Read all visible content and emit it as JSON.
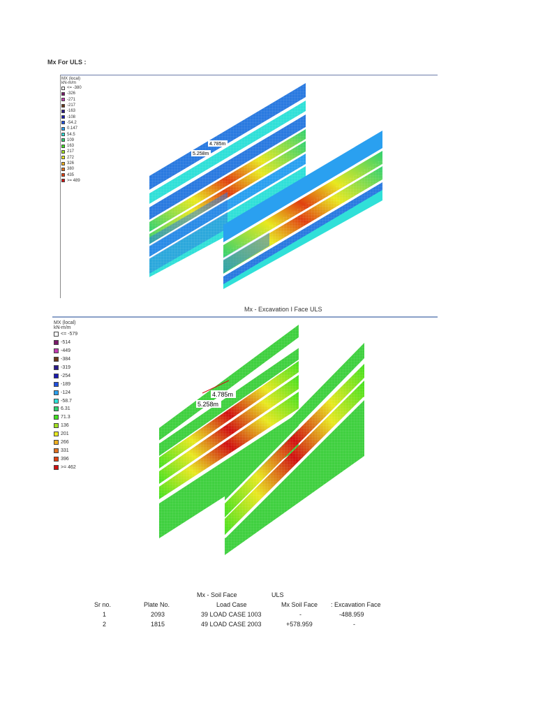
{
  "section1": {
    "heading": "Mx For ULS :",
    "legend_title": "MX (local)",
    "legend_unit": "kN-m/m",
    "legend": [
      {
        "label": "<= -380",
        "color": "#ffffff"
      },
      {
        "label": "-326",
        "color": "#7a1a6a"
      },
      {
        "label": "-271",
        "color": "#c23ab0"
      },
      {
        "label": "-217",
        "color": "#6b3a1a"
      },
      {
        "label": "-163",
        "color": "#2a1a8a"
      },
      {
        "label": "-108",
        "color": "#1a1ab0"
      },
      {
        "label": "-54.2",
        "color": "#2050e0"
      },
      {
        "label": "0.147",
        "color": "#2aa0f0"
      },
      {
        "label": "54.5",
        "color": "#30e0d8"
      },
      {
        "label": "109",
        "color": "#30d070"
      },
      {
        "label": "163",
        "color": "#40e020"
      },
      {
        "label": "217",
        "color": "#a0e020"
      },
      {
        "label": "272",
        "color": "#e8e820"
      },
      {
        "label": "326",
        "color": "#f0b020"
      },
      {
        "label": "380",
        "color": "#e07020"
      },
      {
        "label": "435",
        "color": "#e04010"
      },
      {
        "label": ">= 489",
        "color": "#d01010"
      }
    ],
    "dim_a": "4.785m",
    "dim_b": "5.258m"
  },
  "section2": {
    "heading": "Mx - Excavation I Face  ULS",
    "legend_title": "MX (local)",
    "legend_unit": "kN-m/m",
    "legend": [
      {
        "label": "<= -579",
        "color": "#ffffff"
      },
      {
        "label": "-514",
        "color": "#7a1a6a"
      },
      {
        "label": "-449",
        "color": "#c23ab0"
      },
      {
        "label": "-384",
        "color": "#6b3a1a"
      },
      {
        "label": "-319",
        "color": "#2a1a8a"
      },
      {
        "label": "-254",
        "color": "#1a1ab0"
      },
      {
        "label": "-189",
        "color": "#2050e0"
      },
      {
        "label": "-124",
        "color": "#2aa0f0"
      },
      {
        "label": "-58.7",
        "color": "#30e0d8"
      },
      {
        "label": "6.31",
        "color": "#30d070"
      },
      {
        "label": "71.3",
        "color": "#40e020"
      },
      {
        "label": "136",
        "color": "#a0e020"
      },
      {
        "label": "201",
        "color": "#e8e820"
      },
      {
        "label": "266",
        "color": "#f0b020"
      },
      {
        "label": "331",
        "color": "#e07020"
      },
      {
        "label": "396",
        "color": "#e04010"
      },
      {
        "label": ">= 462",
        "color": "#d01010"
      }
    ],
    "dim_a": "4.785m",
    "dim_b": "5.258m"
  },
  "table": {
    "title_left": "Mx - Soil Face",
    "title_right": "ULS",
    "headers": [
      "Sr no.",
      "Plate No.",
      "Load Case",
      "Mx Soil Face",
      ": Excavation Face"
    ],
    "rows": [
      [
        "1",
        "2093",
        "39 LOAD CASE 1003",
        "-",
        "-488.959"
      ],
      [
        "2",
        "1815",
        "49 LOAD CASE 2003",
        "+578.959",
        "-"
      ]
    ]
  }
}
